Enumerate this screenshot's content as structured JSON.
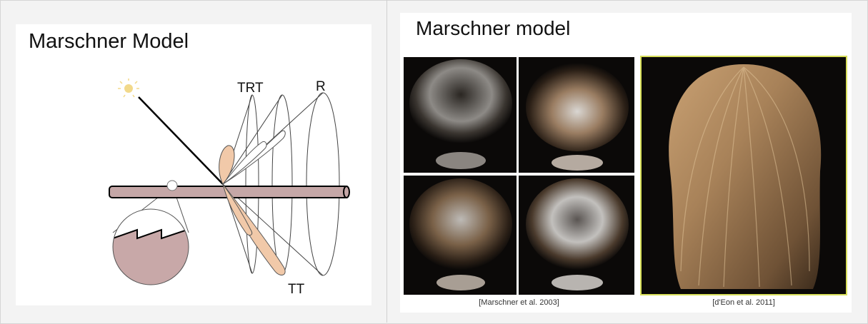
{
  "left_panel": {
    "title": "Marschner Model",
    "labels": {
      "trt": "TRT",
      "r": "R",
      "tt": "TT"
    }
  },
  "right_panel": {
    "title": "Marschner model",
    "captions": [
      "[Marschner et al. 2003]",
      "[d'Eon et al. 2011]"
    ]
  },
  "colors": {
    "lobe_fill": "#f1c9a9",
    "fiber_fill": "#c5a7a7",
    "zoom_fill": "#c8a8a8",
    "sun": "#f2d98a",
    "photo_bg": "#0b0908",
    "hair": "#a88259",
    "highlight_border": "#d8df5a"
  }
}
